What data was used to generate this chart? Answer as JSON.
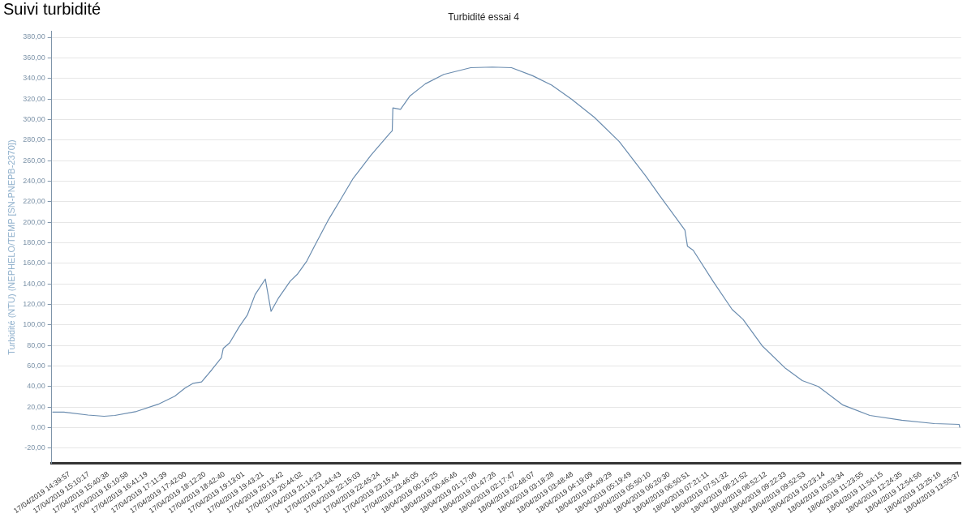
{
  "chart_data": {
    "type": "line",
    "title": "Turbidité essai 4",
    "annotations": [
      "Suivi turbidité"
    ],
    "ylabel": "Turbidité (NTU) (NEPHELO/TEMP [SN-PNEPB-2370])",
    "x": [
      "2019-04-17T14:13",
      "2019-04-17T14:31",
      "2019-04-17T15:09",
      "2019-04-17T15:34",
      "2019-04-17T15:51",
      "2019-04-17T16:25",
      "2019-04-17T16:59",
      "2019-04-17T17:25",
      "2019-04-17T17:41",
      "2019-04-17T17:54",
      "2019-04-17T18:07",
      "2019-04-17T18:23",
      "2019-04-17T18:38",
      "2019-04-17T18:41",
      "2019-04-17T18:51",
      "2019-04-17T19:06",
      "2019-04-17T19:19",
      "2019-04-17T19:31",
      "2019-04-17T19:47",
      "2019-04-17T19:56",
      "2019-04-17T20:07",
      "2019-04-17T20:26",
      "2019-04-17T20:37",
      "2019-04-17T20:52",
      "2019-04-17T21:04",
      "2019-04-17T21:25",
      "2019-04-17T21:44",
      "2019-04-17T22:04",
      "2019-04-17T22:33",
      "2019-04-17T23:02",
      "2019-04-17T23:06",
      "2019-04-17T23:07",
      "2019-04-17T23:19",
      "2019-04-17T23:34",
      "2019-04-17T23:58",
      "2019-04-18T00:27",
      "2019-04-18T01:09",
      "2019-04-18T01:43",
      "2019-04-18T02:13",
      "2019-04-18T02:46",
      "2019-04-18T03:16",
      "2019-04-18T03:47",
      "2019-04-18T04:23",
      "2019-04-18T05:02",
      "2019-04-18T05:44",
      "2019-04-18T06:05",
      "2019-04-18T06:45",
      "2019-04-18T06:49",
      "2019-04-18T06:58",
      "2019-04-18T07:29",
      "2019-04-18T07:59",
      "2019-04-18T08:16",
      "2019-04-18T08:46",
      "2019-04-18T09:23",
      "2019-04-18T09:49",
      "2019-04-18T10:14",
      "2019-04-18T10:52",
      "2019-04-18T11:35",
      "2019-04-18T12:25",
      "2019-04-18T13:16",
      "2019-04-18T13:55",
      "2019-04-18T13:56"
    ],
    "series": [
      {
        "color": "#6a8caf",
        "values": [
          15.1,
          15.1,
          12.2,
          11.0,
          11.8,
          15.7,
          22.7,
          30.6,
          38.4,
          43.1,
          44.4,
          56.2,
          67.9,
          77.1,
          82.4,
          98.1,
          109.8,
          129.5,
          144.6,
          113.2,
          125.5,
          142.5,
          149.1,
          162.1,
          176.5,
          201.3,
          221,
          241.9,
          265.4,
          286.4,
          289,
          311.2,
          309.9,
          323,
          334.7,
          343.9,
          350.4,
          351,
          350.4,
          342.6,
          333.5,
          319.8,
          302.1,
          278.5,
          244.5,
          226.2,
          192.2,
          176.5,
          172.6,
          142.5,
          115,
          105.4,
          79.7,
          57.5,
          45.7,
          40,
          22.2,
          11.8,
          7.1,
          3.9,
          3.1,
          0
        ]
      }
    ],
    "xlim": [
      "2019-04-17T14:12",
      "2019-04-18T13:58"
    ],
    "ylim": [
      -35,
      386
    ],
    "yticks": [
      {
        "value": -20,
        "label": "-20,00"
      },
      {
        "value": 0,
        "label": "0,00"
      },
      {
        "value": 20,
        "label": "20,00"
      },
      {
        "value": 40,
        "label": "40,00"
      },
      {
        "value": 60,
        "label": "60,00"
      },
      {
        "value": 80,
        "label": "80,00"
      },
      {
        "value": 100,
        "label": "100,00"
      },
      {
        "value": 120,
        "label": "120,00"
      },
      {
        "value": 140,
        "label": "140,00"
      },
      {
        "value": 160,
        "label": "160,00"
      },
      {
        "value": 180,
        "label": "180,00"
      },
      {
        "value": 200,
        "label": "200,00"
      },
      {
        "value": 220,
        "label": "220,00"
      },
      {
        "value": 240,
        "label": "240,00"
      },
      {
        "value": 260,
        "label": "260,00"
      },
      {
        "value": 280,
        "label": "280,00"
      },
      {
        "value": 300,
        "label": "300,00"
      },
      {
        "value": 320,
        "label": "320,00"
      },
      {
        "value": 340,
        "label": "340,00"
      },
      {
        "value": 360,
        "label": "360,00"
      },
      {
        "value": 380,
        "label": "380,00"
      }
    ],
    "xticks": [
      {
        "value": "2019-04-17T14:39:57",
        "label": "17/04/2019 14:39:57"
      },
      {
        "value": "2019-04-17T15:10:17",
        "label": "17/04/2019 15:10:17"
      },
      {
        "value": "2019-04-17T15:40:38",
        "label": "17/04/2019 15:40:38"
      },
      {
        "value": "2019-04-17T16:10:58",
        "label": "17/04/2019 16:10:58"
      },
      {
        "value": "2019-04-17T16:41:19",
        "label": "17/04/2019 16:41:19"
      },
      {
        "value": "2019-04-17T17:11:39",
        "label": "17/04/2019 17:11:39"
      },
      {
        "value": "2019-04-17T17:42:00",
        "label": "17/04/2019 17:42:00"
      },
      {
        "value": "2019-04-17T18:12:20",
        "label": "17/04/2019 18:12:20"
      },
      {
        "value": "2019-04-17T18:42:40",
        "label": "17/04/2019 18:42:40"
      },
      {
        "value": "2019-04-17T19:13:01",
        "label": "17/04/2019 19:13:01"
      },
      {
        "value": "2019-04-17T19:43:21",
        "label": "17/04/2019 19:43:21"
      },
      {
        "value": "2019-04-17T20:13:42",
        "label": "17/04/2019 20:13:42"
      },
      {
        "value": "2019-04-17T20:44:02",
        "label": "17/04/2019 20:44:02"
      },
      {
        "value": "2019-04-17T21:14:23",
        "label": "17/04/2019 21:14:23"
      },
      {
        "value": "2019-04-17T21:44:43",
        "label": "17/04/2019 21:44:43"
      },
      {
        "value": "2019-04-17T22:15:03",
        "label": "17/04/2019 22:15:03"
      },
      {
        "value": "2019-04-17T22:45:24",
        "label": "17/04/2019 22:45:24"
      },
      {
        "value": "2019-04-17T23:15:44",
        "label": "17/04/2019 23:15:44"
      },
      {
        "value": "2019-04-17T23:46:05",
        "label": "17/04/2019 23:46:05"
      },
      {
        "value": "2019-04-18T00:16:25",
        "label": "18/04/2019 00:16:25"
      },
      {
        "value": "2019-04-18T00:46:46",
        "label": "18/04/2019 00:46:46"
      },
      {
        "value": "2019-04-18T01:17:06",
        "label": "18/04/2019 01:17:06"
      },
      {
        "value": "2019-04-18T01:47:26",
        "label": "18/04/2019 01:47:26"
      },
      {
        "value": "2019-04-18T02:17:47",
        "label": "18/04/2019 02:17:47"
      },
      {
        "value": "2019-04-18T02:48:07",
        "label": "18/04/2019 02:48:07"
      },
      {
        "value": "2019-04-18T03:18:28",
        "label": "18/04/2019 03:18:28"
      },
      {
        "value": "2019-04-18T03:48:48",
        "label": "18/04/2019 03:48:48"
      },
      {
        "value": "2019-04-18T04:19:09",
        "label": "18/04/2019 04:19:09"
      },
      {
        "value": "2019-04-18T04:49:29",
        "label": "18/04/2019 04:49:29"
      },
      {
        "value": "2019-04-18T05:19:49",
        "label": "18/04/2019 05:19:49"
      },
      {
        "value": "2019-04-18T05:50:10",
        "label": "18/04/2019 05:50:10"
      },
      {
        "value": "2019-04-18T06:20:30",
        "label": "18/04/2019 06:20:30"
      },
      {
        "value": "2019-04-18T06:50:51",
        "label": "18/04/2019 06:50:51"
      },
      {
        "value": "2019-04-18T07:21:11",
        "label": "18/04/2019 07:21:11"
      },
      {
        "value": "2019-04-18T07:51:32",
        "label": "18/04/2019 07:51:32"
      },
      {
        "value": "2019-04-18T08:21:52",
        "label": "18/04/2019 08:21:52"
      },
      {
        "value": "2019-04-18T08:52:12",
        "label": "18/04/2019 08:52:12"
      },
      {
        "value": "2019-04-18T09:22:33",
        "label": "18/04/2019 09:22:33"
      },
      {
        "value": "2019-04-18T09:52:53",
        "label": "18/04/2019 09:52:53"
      },
      {
        "value": "2019-04-18T10:23:14",
        "label": "18/04/2019 10:23:14"
      },
      {
        "value": "2019-04-18T10:53:34",
        "label": "18/04/2019 10:53:34"
      },
      {
        "value": "2019-04-18T11:23:55",
        "label": "18/04/2019 11:23:55"
      },
      {
        "value": "2019-04-18T11:54:15",
        "label": "18/04/2019 11:54:15"
      },
      {
        "value": "2019-04-18T12:24:35",
        "label": "18/04/2019 12:24:35"
      },
      {
        "value": "2019-04-18T12:54:56",
        "label": "18/04/2019 12:54:56"
      },
      {
        "value": "2019-04-18T13:25:16",
        "label": "18/04/2019 13:25:16"
      },
      {
        "value": "2019-04-18T13:55:37",
        "label": "18/04/2019 13:55:37"
      }
    ],
    "grid": "y",
    "legend": false,
    "marker": "none",
    "line_style": "solid"
  }
}
